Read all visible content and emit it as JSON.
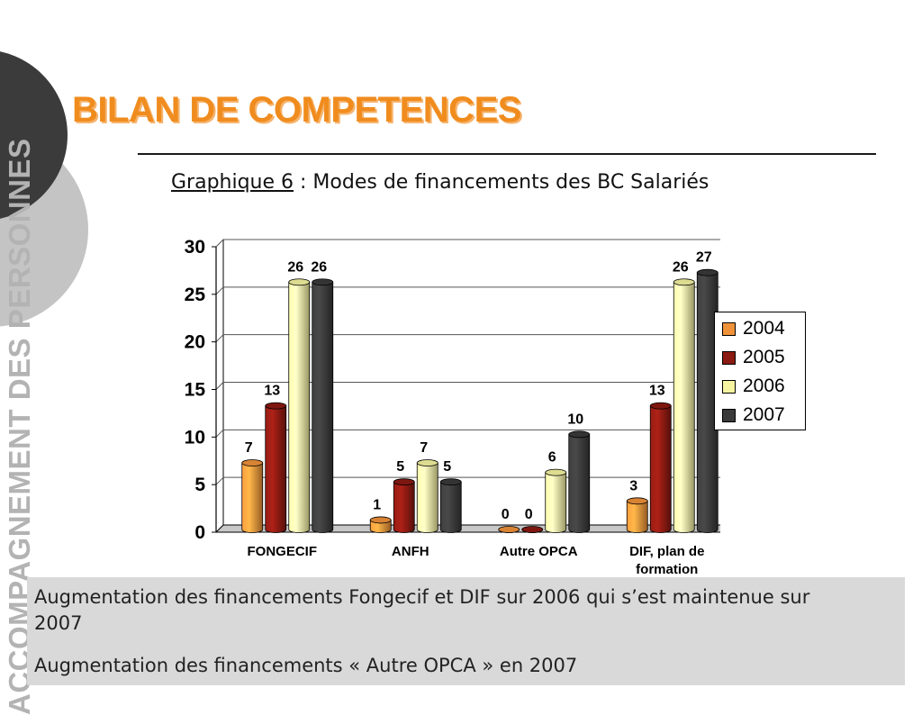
{
  "side_label": "ACCOMPAGNEMENT DES PERSONNES",
  "title": "BILAN DE COMPETENCES",
  "subtitle": {
    "prefix": "Graphique 6",
    "text": " : Modes de financements des BC Salariés"
  },
  "colors": {
    "title": "#f08c1e",
    "2004": "#f0923a",
    "2005": "#8b1a12",
    "2006": "#f6f4a0",
    "2007": "#3a3a3a"
  },
  "chart_data": {
    "type": "bar",
    "categories": [
      "FONGECIF",
      "ANFH",
      "Autre OPCA",
      "DIF, plan de formation"
    ],
    "category_lines": [
      [
        "FONGECIF"
      ],
      [
        "ANFH"
      ],
      [
        "Autre OPCA"
      ],
      [
        "DIF, plan de",
        "formation"
      ]
    ],
    "series": [
      {
        "name": "2004",
        "values": [
          7,
          1,
          0,
          3
        ]
      },
      {
        "name": "2005",
        "values": [
          13,
          5,
          0,
          13
        ]
      },
      {
        "name": "2006",
        "values": [
          26,
          7,
          6,
          26
        ]
      },
      {
        "name": "2007",
        "values": [
          26,
          5,
          10,
          27
        ]
      }
    ],
    "ylim": [
      0,
      30
    ],
    "yticks": [
      "0",
      "5",
      "10",
      "15",
      "20",
      "25",
      "30"
    ],
    "grid": true,
    "legend_position": "right",
    "style": "3d-cylinder"
  },
  "notes": [
    "Augmentation des financements Fongecif et DIF sur 2006 qui s’est maintenue sur 2007",
    "Augmentation des financements « Autre OPCA » en 2007"
  ]
}
